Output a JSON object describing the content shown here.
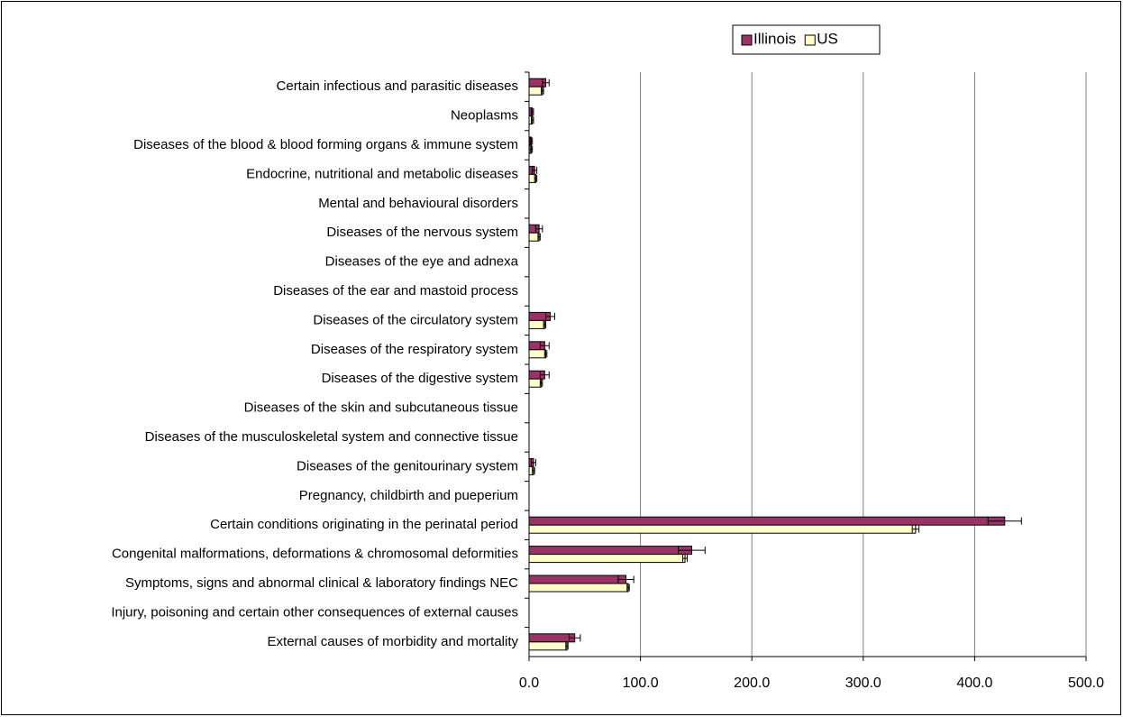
{
  "chart_data": {
    "type": "bar",
    "orientation": "horizontal",
    "categories": [
      "Certain infectious and parasitic diseases",
      "Neoplasms",
      "Diseases of the blood & blood forming organs & immune system",
      "Endocrine, nutritional and metabolic diseases",
      "Mental and behavioural disorders",
      "Diseases of the nervous system",
      "Diseases of the eye and adnexa",
      "Diseases of the ear and mastoid process",
      "Diseases of the circulatory system",
      "Diseases of the respiratory system",
      "Diseases of the digestive system",
      "Diseases of the skin and subcutaneous tissue",
      "Diseases of the musculoskeletal system and connective tissue",
      "Diseases of the genitourinary system",
      "Pregnancy, childbirth and pueperium",
      "Certain conditions originating in the perinatal period",
      "Congenital malformations, deformations & chromosomal deformities",
      "Symptoms, signs and abnormal clinical & laboratory findings NEC",
      "Injury, poisoning and certain other consequences of external causes",
      "External causes of morbidity and mortality"
    ],
    "series": [
      {
        "name": "Illinois",
        "color": "#993366",
        "values": [
          15,
          3,
          2,
          5,
          0,
          9,
          0,
          0,
          19,
          14,
          14,
          0,
          0,
          4,
          0,
          427,
          146,
          87,
          0,
          41
        ],
        "errors": [
          3,
          1,
          1,
          2,
          0,
          3,
          0,
          0,
          4,
          4,
          4,
          0,
          0,
          2,
          0,
          15,
          12,
          7,
          0,
          5
        ]
      },
      {
        "name": "US",
        "color": "#ffffcc",
        "values": [
          12,
          3,
          2,
          6,
          0,
          9,
          0,
          0,
          14,
          15,
          11,
          0,
          0,
          4,
          0,
          347,
          140,
          89,
          0,
          34
        ],
        "errors": [
          1,
          1,
          1,
          1,
          0,
          1,
          0,
          0,
          1,
          1,
          1,
          0,
          0,
          1,
          0,
          3,
          2,
          1,
          0,
          1
        ]
      }
    ],
    "xlim": [
      0,
      500
    ],
    "xticks": [
      {
        "value": 0,
        "label": "0.0"
      },
      {
        "value": 100,
        "label": "100.0"
      },
      {
        "value": 200,
        "label": "200.0"
      },
      {
        "value": 300,
        "label": "300.0"
      },
      {
        "value": 400,
        "label": "400.0"
      },
      {
        "value": 500,
        "label": "500.0"
      }
    ],
    "grid": true,
    "legend": "top"
  }
}
